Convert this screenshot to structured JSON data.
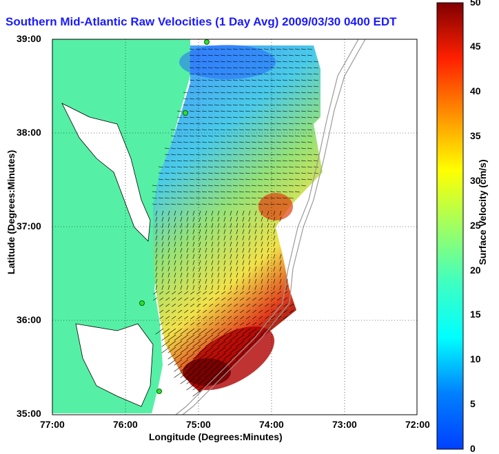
{
  "title": "Southern Mid-Atlantic Raw Velocities (1 Day Avg) 2009/03/30 0400 EDT",
  "x_axis": {
    "label": "Longitude (Degrees:Minutes)",
    "ticks": [
      "77:00",
      "76:00",
      "75:00",
      "74:00",
      "73:00",
      "72:00"
    ]
  },
  "y_axis": {
    "label": "Latitude (Degrees:Minutes)",
    "ticks": [
      "39:00",
      "38:00",
      "37:00",
      "36:00",
      "35:00"
    ]
  },
  "colorbar": {
    "label": "Surface Velocity (cm/s)",
    "ticks": [
      "0",
      "5",
      "10",
      "15",
      "20",
      "25",
      "30",
      "35",
      "40",
      "45",
      "50"
    ],
    "colormap": "jet"
  },
  "map": {
    "lon_range": [
      -77,
      -72
    ],
    "lat_range": [
      35,
      39
    ],
    "land_color": "#55f0a5",
    "grid": "dotted"
  },
  "colors": {
    "title": "#1a1aff",
    "land": "#55f0a5",
    "coast": "#000000",
    "bathymetry": "#999999"
  }
}
